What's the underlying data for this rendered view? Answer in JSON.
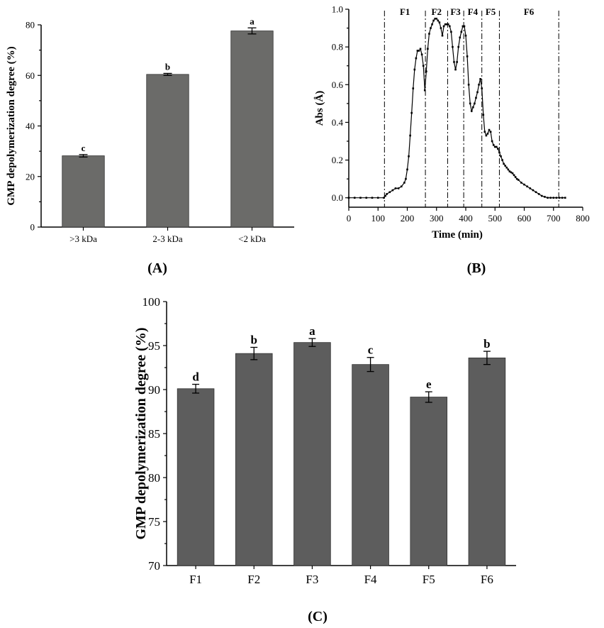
{
  "chart_data": [
    {
      "panel": "(A)",
      "type": "bar",
      "categories": [
        ">3 kDa",
        "2-3 kDa",
        "<2 kDa"
      ],
      "values": [
        28.2,
        60.4,
        77.6
      ],
      "errors": [
        0.5,
        0.4,
        1.2
      ],
      "letters": [
        "c",
        "b",
        "a"
      ],
      "ylabel": "GMP depolymerization degree (%)",
      "xlabel": "",
      "ylim": [
        0,
        80
      ],
      "yticks": [
        0,
        20,
        40,
        60,
        80
      ],
      "bar_color": "#6b6b69"
    },
    {
      "panel": "(B)",
      "type": "line",
      "xlabel": "Time (min)",
      "ylabel": "Abs (Å)",
      "xlim": [
        0,
        800
      ],
      "ylim": [
        -0.05,
        1.0
      ],
      "xticks": [
        0,
        100,
        200,
        300,
        400,
        500,
        600,
        700,
        800
      ],
      "yticks": [
        0.0,
        0.2,
        0.4,
        0.6,
        0.8,
        1.0
      ],
      "fraction_boundaries": [
        122,
        262,
        338,
        393,
        455,
        515,
        718
      ],
      "fractions": [
        {
          "label": "F1",
          "center": 192
        },
        {
          "label": "F2",
          "center": 300
        },
        {
          "label": "F3",
          "center": 365
        },
        {
          "label": "F4",
          "center": 424
        },
        {
          "label": "F5",
          "center": 485
        },
        {
          "label": "F6",
          "center": 616
        }
      ],
      "x": [
        0,
        20,
        40,
        60,
        80,
        100,
        120,
        125,
        130,
        140,
        150,
        160,
        170,
        180,
        190,
        195,
        200,
        205,
        210,
        215,
        220,
        225,
        230,
        235,
        240,
        245,
        250,
        255,
        260,
        265,
        270,
        275,
        280,
        285,
        290,
        295,
        300,
        305,
        310,
        315,
        320,
        325,
        330,
        335,
        340,
        345,
        350,
        355,
        360,
        365,
        370,
        375,
        380,
        385,
        390,
        395,
        400,
        405,
        410,
        415,
        420,
        425,
        430,
        435,
        440,
        445,
        450,
        455,
        460,
        465,
        470,
        475,
        480,
        485,
        490,
        495,
        500,
        505,
        510,
        515,
        520,
        525,
        530,
        535,
        540,
        545,
        550,
        555,
        560,
        565,
        570,
        575,
        580,
        590,
        600,
        610,
        620,
        630,
        640,
        650,
        660,
        670,
        680,
        690,
        700,
        710,
        720,
        730,
        740
      ],
      "y": [
        0.0,
        0.0,
        0.0,
        0.0,
        0.0,
        0.0,
        0.0,
        0.01,
        0.02,
        0.03,
        0.04,
        0.05,
        0.05,
        0.06,
        0.08,
        0.1,
        0.15,
        0.22,
        0.33,
        0.45,
        0.58,
        0.68,
        0.74,
        0.78,
        0.78,
        0.79,
        0.76,
        0.7,
        0.57,
        0.67,
        0.79,
        0.87,
        0.9,
        0.92,
        0.94,
        0.95,
        0.95,
        0.94,
        0.93,
        0.9,
        0.86,
        0.91,
        0.92,
        0.92,
        0.92,
        0.91,
        0.88,
        0.8,
        0.72,
        0.68,
        0.72,
        0.8,
        0.85,
        0.88,
        0.91,
        0.91,
        0.86,
        0.75,
        0.6,
        0.5,
        0.46,
        0.48,
        0.5,
        0.53,
        0.56,
        0.6,
        0.63,
        0.58,
        0.44,
        0.35,
        0.33,
        0.34,
        0.36,
        0.35,
        0.3,
        0.28,
        0.27,
        0.27,
        0.26,
        0.24,
        0.22,
        0.2,
        0.18,
        0.17,
        0.16,
        0.15,
        0.14,
        0.135,
        0.13,
        0.12,
        0.11,
        0.1,
        0.095,
        0.08,
        0.07,
        0.06,
        0.05,
        0.04,
        0.03,
        0.02,
        0.01,
        0.005,
        0.0,
        0.0,
        0.0,
        0.0,
        0.0,
        0.0,
        0.0
      ]
    },
    {
      "panel": "(C)",
      "type": "bar",
      "categories": [
        "F1",
        "F2",
        "F3",
        "F4",
        "F5",
        "F6"
      ],
      "values": [
        90.1,
        94.1,
        95.35,
        92.85,
        89.15,
        93.6
      ],
      "errors": [
        0.5,
        0.7,
        0.45,
        0.8,
        0.6,
        0.75
      ],
      "letters": [
        "d",
        "b",
        "a",
        "c",
        "e",
        "b"
      ],
      "ylabel": "GMP depolymerization degree (%)",
      "xlabel": "",
      "ylim": [
        70,
        100
      ],
      "yticks": [
        70,
        75,
        80,
        85,
        90,
        95,
        100
      ],
      "bar_color": "#5d5d5d"
    }
  ]
}
